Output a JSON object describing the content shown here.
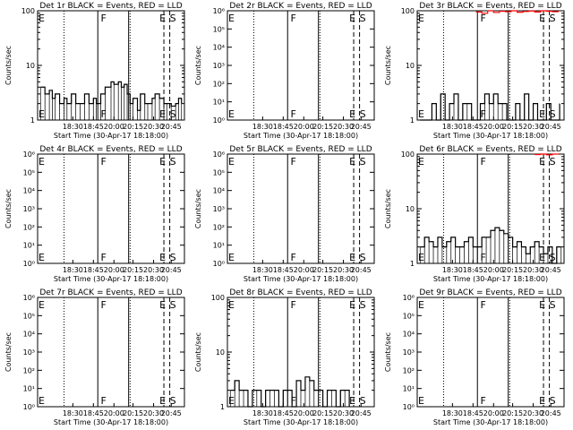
{
  "xlabel": "Start Time (30-Apr-17 18:18:00)",
  "ylabel": "Counts/sec",
  "x_tick_labels": [
    "18:30",
    "18:45",
    "20:00",
    "20:15",
    "20:30",
    "20:45"
  ],
  "chart_data": [
    {
      "type": "line",
      "title": "Det 1r BLACK = Events, RED = LLD",
      "scale": "log",
      "ylim": [
        1,
        100
      ],
      "y_tick_labels": [
        "1",
        "10",
        "100"
      ],
      "marker_labels": [
        "F",
        "E",
        "S"
      ],
      "series": [
        {
          "color": "#000000",
          "x": [
            0.02,
            0.05,
            0.08,
            0.1,
            0.12,
            0.15,
            0.18,
            0.2,
            0.23,
            0.26,
            0.29,
            0.32,
            0.35,
            0.38,
            0.4,
            0.43,
            0.46,
            0.5,
            0.52,
            0.55,
            0.57,
            0.59,
            0.61,
            0.63,
            0.65,
            0.68,
            0.7,
            0.73,
            0.75,
            0.78,
            0.8,
            0.83,
            0.86,
            0.88,
            0.91,
            0.94,
            0.96,
            0.98
          ],
          "y": [
            4,
            3,
            3.5,
            2.5,
            3,
            2,
            2.5,
            2,
            3,
            2,
            2,
            3,
            2,
            2.5,
            2,
            3,
            4,
            5,
            4.5,
            5,
            4,
            4.5,
            3,
            2,
            2.5,
            1.5,
            3,
            2,
            2,
            2.5,
            3,
            2.5,
            2,
            2,
            1.8,
            2,
            2.5,
            2
          ]
        }
      ]
    },
    {
      "type": "line",
      "title": "Det 2r BLACK = Events, RED = LLD",
      "scale": "log",
      "ylim": [
        1,
        1000000
      ],
      "y_tick_labels": [
        "10⁰",
        "10¹",
        "10²",
        "10³",
        "10⁴",
        "10⁵",
        "10⁶"
      ],
      "marker_labels": [
        "F",
        "E",
        "S"
      ],
      "series": []
    },
    {
      "type": "line",
      "title": "Det 3r BLACK = Events, RED = LLD",
      "scale": "log",
      "ylim": [
        1,
        100
      ],
      "y_tick_labels": [
        "1",
        "10",
        "100"
      ],
      "marker_labels": [
        "F",
        "E",
        "S"
      ],
      "series": [
        {
          "color": "#000000",
          "x": [
            0.02,
            0.08,
            0.1,
            0.13,
            0.16,
            0.19,
            0.22,
            0.25,
            0.28,
            0.31,
            0.34,
            0.37,
            0.4,
            0.43,
            0.46,
            0.49,
            0.52,
            0.55,
            0.58,
            0.61,
            0.64,
            0.67,
            0.7,
            0.73,
            0.76,
            0.79,
            0.82,
            0.85,
            0.88,
            0.91,
            0.94,
            0.97
          ],
          "y": [
            1,
            1,
            2,
            1,
            3,
            1,
            2,
            3,
            1,
            2,
            2,
            1,
            1,
            2,
            3,
            2,
            3,
            2,
            2,
            1,
            1,
            2,
            1,
            3,
            1,
            2,
            1,
            1,
            2,
            1,
            1,
            2
          ]
        },
        {
          "color": "#ff0000",
          "x": [
            0.4,
            0.44,
            0.48,
            0.52,
            0.56,
            0.6,
            0.64,
            0.68,
            0.72,
            0.76,
            0.8,
            0.84,
            0.88,
            0.92,
            0.96
          ],
          "y": [
            95,
            90,
            100,
            93,
            98,
            96,
            100,
            94,
            97,
            99,
            95,
            100,
            98,
            96,
            100
          ]
        }
      ]
    },
    {
      "type": "line",
      "title": "Det 4r BLACK = Events, RED = LLD",
      "scale": "log",
      "ylim": [
        1,
        1000000
      ],
      "y_tick_labels": [
        "10⁰",
        "10¹",
        "10²",
        "10³",
        "10⁴",
        "10⁵",
        "10⁶"
      ],
      "marker_labels": [
        "F",
        "E",
        "S"
      ],
      "series": []
    },
    {
      "type": "line",
      "title": "Det 5r BLACK = Events, RED = LLD",
      "scale": "log",
      "ylim": [
        1,
        1000000
      ],
      "y_tick_labels": [
        "10⁰",
        "10¹",
        "10²",
        "10³",
        "10⁴",
        "10⁵",
        "10⁶"
      ],
      "marker_labels": [
        "F",
        "E",
        "S"
      ],
      "series": []
    },
    {
      "type": "line",
      "title": "Det 6r BLACK = Events, RED = LLD",
      "scale": "log",
      "ylim": [
        1,
        100
      ],
      "y_tick_labels": [
        "1",
        "10",
        "100"
      ],
      "marker_labels": [
        "F",
        "E",
        "S"
      ],
      "series": [
        {
          "color": "#000000",
          "x": [
            0.02,
            0.05,
            0.08,
            0.11,
            0.14,
            0.17,
            0.2,
            0.23,
            0.26,
            0.29,
            0.32,
            0.35,
            0.38,
            0.41,
            0.44,
            0.47,
            0.5,
            0.53,
            0.56,
            0.59,
            0.62,
            0.65,
            0.68,
            0.71,
            0.74,
            0.77,
            0.8,
            0.83,
            0.86,
            0.89,
            0.92,
            0.95,
            0.98
          ],
          "y": [
            2,
            3,
            2.5,
            2,
            3,
            2,
            2.5,
            3,
            2,
            2,
            2.5,
            3,
            2,
            2,
            3,
            3,
            4,
            4.5,
            4,
            3.5,
            3,
            2,
            2.5,
            2,
            1.5,
            2,
            2.5,
            2,
            1.5,
            2,
            1,
            2,
            2
          ]
        },
        {
          "color": "#ff0000",
          "x": [
            0.8,
            0.84,
            0.88,
            0.92,
            0.96
          ],
          "y": [
            98,
            100,
            97,
            100,
            99
          ]
        }
      ]
    },
    {
      "type": "line",
      "title": "Det 7r BLACK = Events, RED = LLD",
      "scale": "log",
      "ylim": [
        1,
        1000000
      ],
      "y_tick_labels": [
        "10⁰",
        "10¹",
        "10²",
        "10³",
        "10⁴",
        "10⁵",
        "10⁶"
      ],
      "marker_labels": [
        "F",
        "E",
        "S"
      ],
      "series": []
    },
    {
      "type": "line",
      "title": "Det 8r BLACK = Events, RED = LLD",
      "scale": "log",
      "ylim": [
        1,
        100
      ],
      "y_tick_labels": [
        "1",
        "10",
        "100"
      ],
      "marker_labels": [
        "F",
        "E",
        "S"
      ],
      "series": [
        {
          "color": "#000000",
          "x": [
            0.02,
            0.05,
            0.08,
            0.11,
            0.14,
            0.17,
            0.2,
            0.23,
            0.26,
            0.29,
            0.32,
            0.35,
            0.38,
            0.41,
            0.44,
            0.47,
            0.5,
            0.53,
            0.56,
            0.59,
            0.62,
            0.65,
            0.68,
            0.71,
            0.74,
            0.77,
            0.8,
            0.83
          ],
          "y": [
            2,
            3,
            2,
            2,
            1,
            2,
            2,
            1,
            2,
            2,
            2,
            1,
            2,
            2,
            1,
            3,
            2,
            3.5,
            3,
            2,
            2,
            1,
            2,
            2,
            1,
            2,
            2,
            1
          ]
        }
      ]
    },
    {
      "type": "line",
      "title": "Det 9r BLACK = Events, RED = LLD",
      "scale": "log",
      "ylim": [
        1,
        1000000
      ],
      "y_tick_labels": [
        "10⁰",
        "10¹",
        "10²",
        "10³",
        "10⁴",
        "10⁵",
        "10⁶"
      ],
      "marker_labels": [
        "F",
        "E",
        "S"
      ],
      "series": []
    }
  ]
}
